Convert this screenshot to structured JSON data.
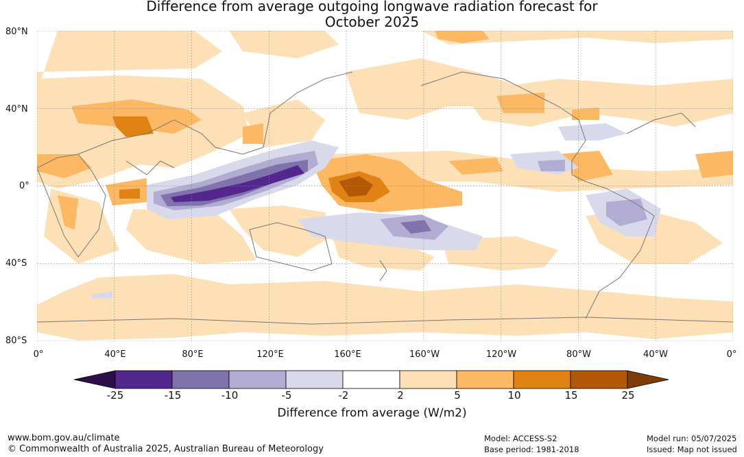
{
  "title_line1": "Difference from average outgoing longwave radiation forecast for",
  "title_line2": "October 2025",
  "lat_labels": [
    "80°N",
    "40°N",
    "0°",
    "40°S",
    "80°S"
  ],
  "lon_labels": [
    "0°",
    "40°E",
    "80°E",
    "120°E",
    "160°E",
    "160°W",
    "120°W",
    "80°W",
    "40°W",
    "0°"
  ],
  "colorbar": {
    "ticks": [
      "-25",
      "-15",
      "-10",
      "-5",
      "-2",
      "2",
      "5",
      "10",
      "15",
      "25"
    ],
    "colors": [
      "#2d0f4a",
      "#54278f",
      "#8073ac",
      "#b2abd2",
      "#d8daeb",
      "#ffffff",
      "#fee0b6",
      "#fdb863",
      "#e08214",
      "#b35806",
      "#7f3b08"
    ],
    "label": "Difference from average (W/m2)"
  },
  "footer": {
    "url": "www.bom.gov.au/climate",
    "copyright": "© Commonwealth of Australia 2025, Australian Bureau of Meteorology",
    "model": "Model: ACCESS-S2",
    "base_period": "Base period: 1981-2018",
    "model_run": "Model run: 05/07/2025",
    "issued": "Issued: Map not issued"
  }
}
